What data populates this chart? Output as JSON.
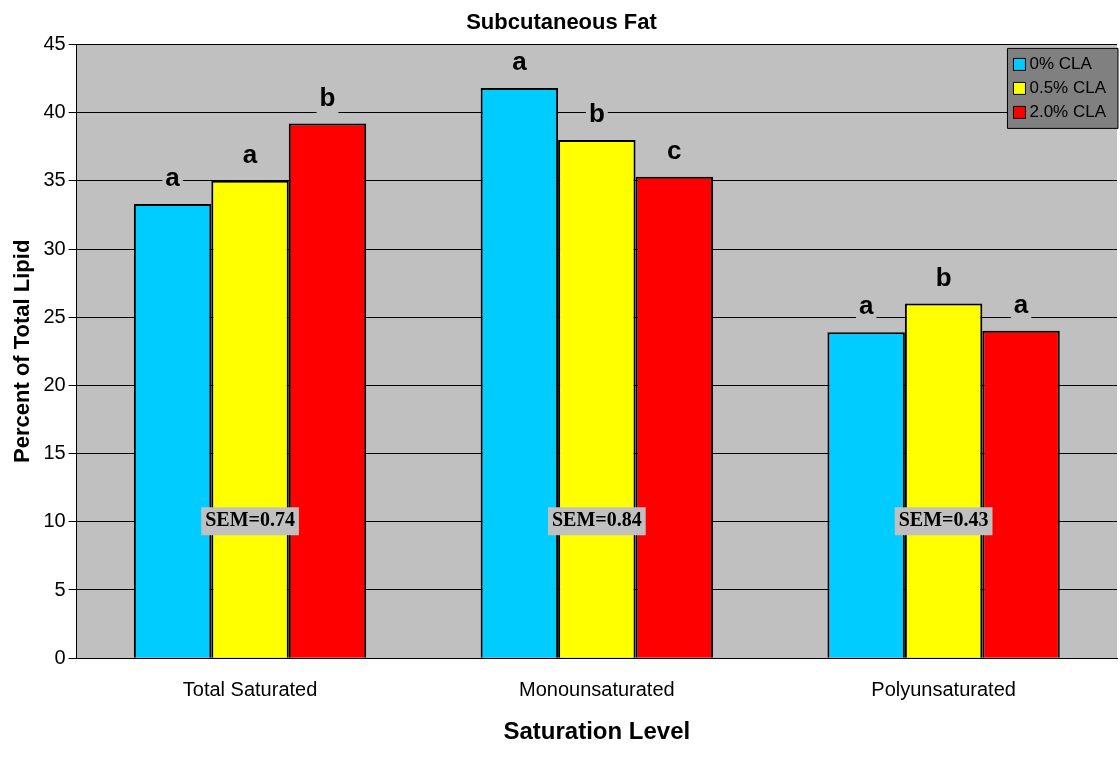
{
  "chart_data": {
    "type": "bar",
    "title": "Subcutaneous Fat",
    "xlabel": "Saturation Level",
    "ylabel": "Percent of Total Lipid",
    "categories": [
      "Total Saturated",
      "Monounsaturated",
      "Polyunsaturated"
    ],
    "series": [
      {
        "name": "0% CLA",
        "color": "#00ccff",
        "values": [
          33.3,
          41.8,
          23.9
        ],
        "value_labels": [
          "a",
          "a",
          "a"
        ]
      },
      {
        "name": "0.5% CLA",
        "color": "#ffff00",
        "values": [
          35.0,
          38.0,
          26.0
        ],
        "value_labels": [
          "a",
          "b",
          "b"
        ]
      },
      {
        "name": "2.0% CLA",
        "color": "#ff0000",
        "values": [
          39.2,
          35.3,
          24.0
        ],
        "value_labels": [
          "b",
          "c",
          "a"
        ]
      }
    ],
    "ylim": [
      0,
      45
    ],
    "yticks": [
      0,
      5,
      10,
      15,
      20,
      25,
      30,
      35,
      40,
      45
    ],
    "grid": "y",
    "legend": "top right",
    "annotations": [
      "SEM=0.74",
      "SEM=0.84",
      "SEM=0.43"
    ]
  }
}
